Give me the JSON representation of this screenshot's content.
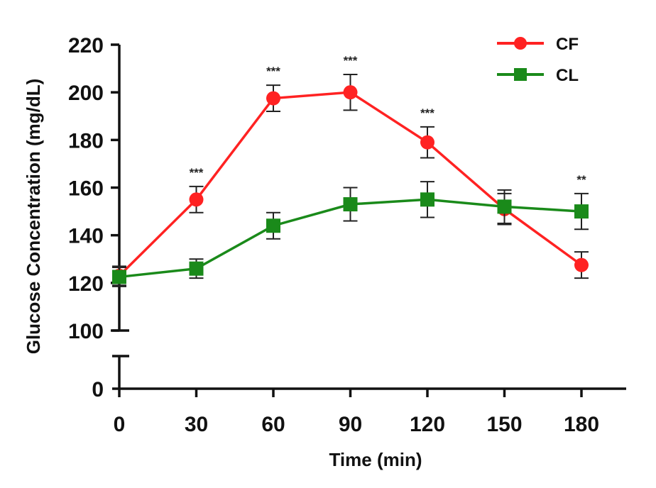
{
  "chart_data": {
    "type": "line",
    "title": "",
    "xlabel": "Time (min)",
    "ylabel": "Glucose Concentration (mg/dL)",
    "x": [
      0,
      30,
      60,
      90,
      120,
      150,
      180
    ],
    "x_tick_labels": [
      "0",
      "30",
      "60",
      "90",
      "120",
      "150",
      "180"
    ],
    "y_ticks": [
      100,
      120,
      140,
      160,
      180,
      200,
      220
    ],
    "y_tick_labels": [
      "100",
      "120",
      "140",
      "160",
      "180",
      "200",
      "220"
    ],
    "y_break_tick_label": "0",
    "ylim": [
      100,
      220
    ],
    "axis_break": true,
    "grid": false,
    "legend_position": "top-right",
    "series": [
      {
        "name": "CF",
        "color": "#ff2222",
        "marker": "circle",
        "values": [
          123,
          155,
          197.5,
          200,
          179,
          151,
          127.5
        ],
        "errors": [
          4,
          5.5,
          5.5,
          7.5,
          6.5,
          6.5,
          5.5
        ]
      },
      {
        "name": "CL",
        "color": "#1a8a1a",
        "marker": "square",
        "values": [
          122.5,
          126,
          144,
          153,
          155,
          152,
          150
        ],
        "errors": [
          4,
          4,
          5.5,
          7,
          7.5,
          7,
          7.5
        ]
      }
    ],
    "significance": [
      "",
      "***",
      "***",
      "***",
      "***",
      "",
      "**"
    ]
  }
}
